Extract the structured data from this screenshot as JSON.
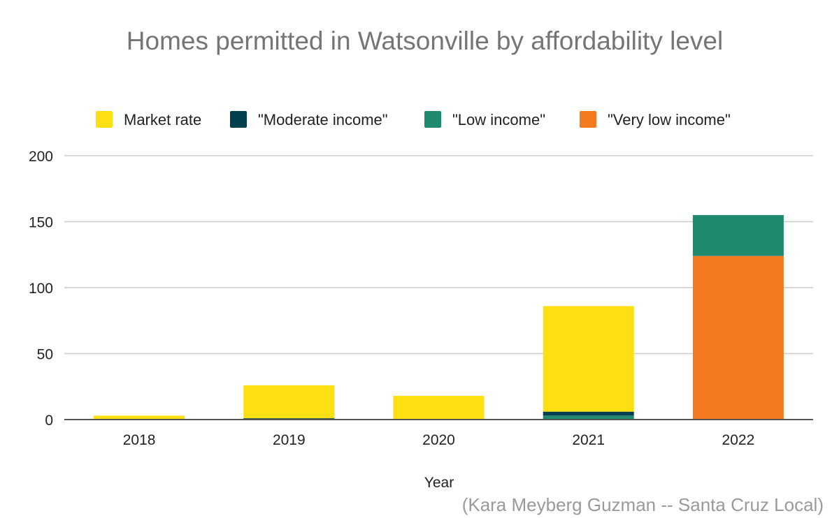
{
  "chart_data": {
    "type": "bar",
    "stacked": true,
    "title": "Homes permitted in Watsonville by affordability level",
    "xlabel": "Year",
    "ylabel": "",
    "ylim": [
      0,
      200
    ],
    "yticks": [
      0,
      50,
      100,
      150,
      200
    ],
    "grid": true,
    "legend_position": "top",
    "categories": [
      "2018",
      "2019",
      "2020",
      "2021",
      "2022"
    ],
    "series": [
      {
        "name": "\"Very low income\"",
        "color": "#F47920",
        "values": [
          0,
          0,
          0,
          0,
          124
        ]
      },
      {
        "name": "\"Low income\"",
        "color": "#1E8A6E",
        "values": [
          0,
          0,
          0,
          3,
          31
        ]
      },
      {
        "name": "\"Moderate income\"",
        "color": "#03404F",
        "values": [
          0,
          1,
          0,
          3,
          0
        ]
      },
      {
        "name": "Market rate",
        "color": "#FDE012",
        "values": [
          3,
          25,
          18,
          80,
          0
        ]
      }
    ],
    "legend_order": [
      "Market rate",
      "\"Moderate income\"",
      "\"Low income\"",
      "\"Very low income\""
    ],
    "credit": "(Kara Meyberg Guzman -- Santa Cruz Local)"
  }
}
